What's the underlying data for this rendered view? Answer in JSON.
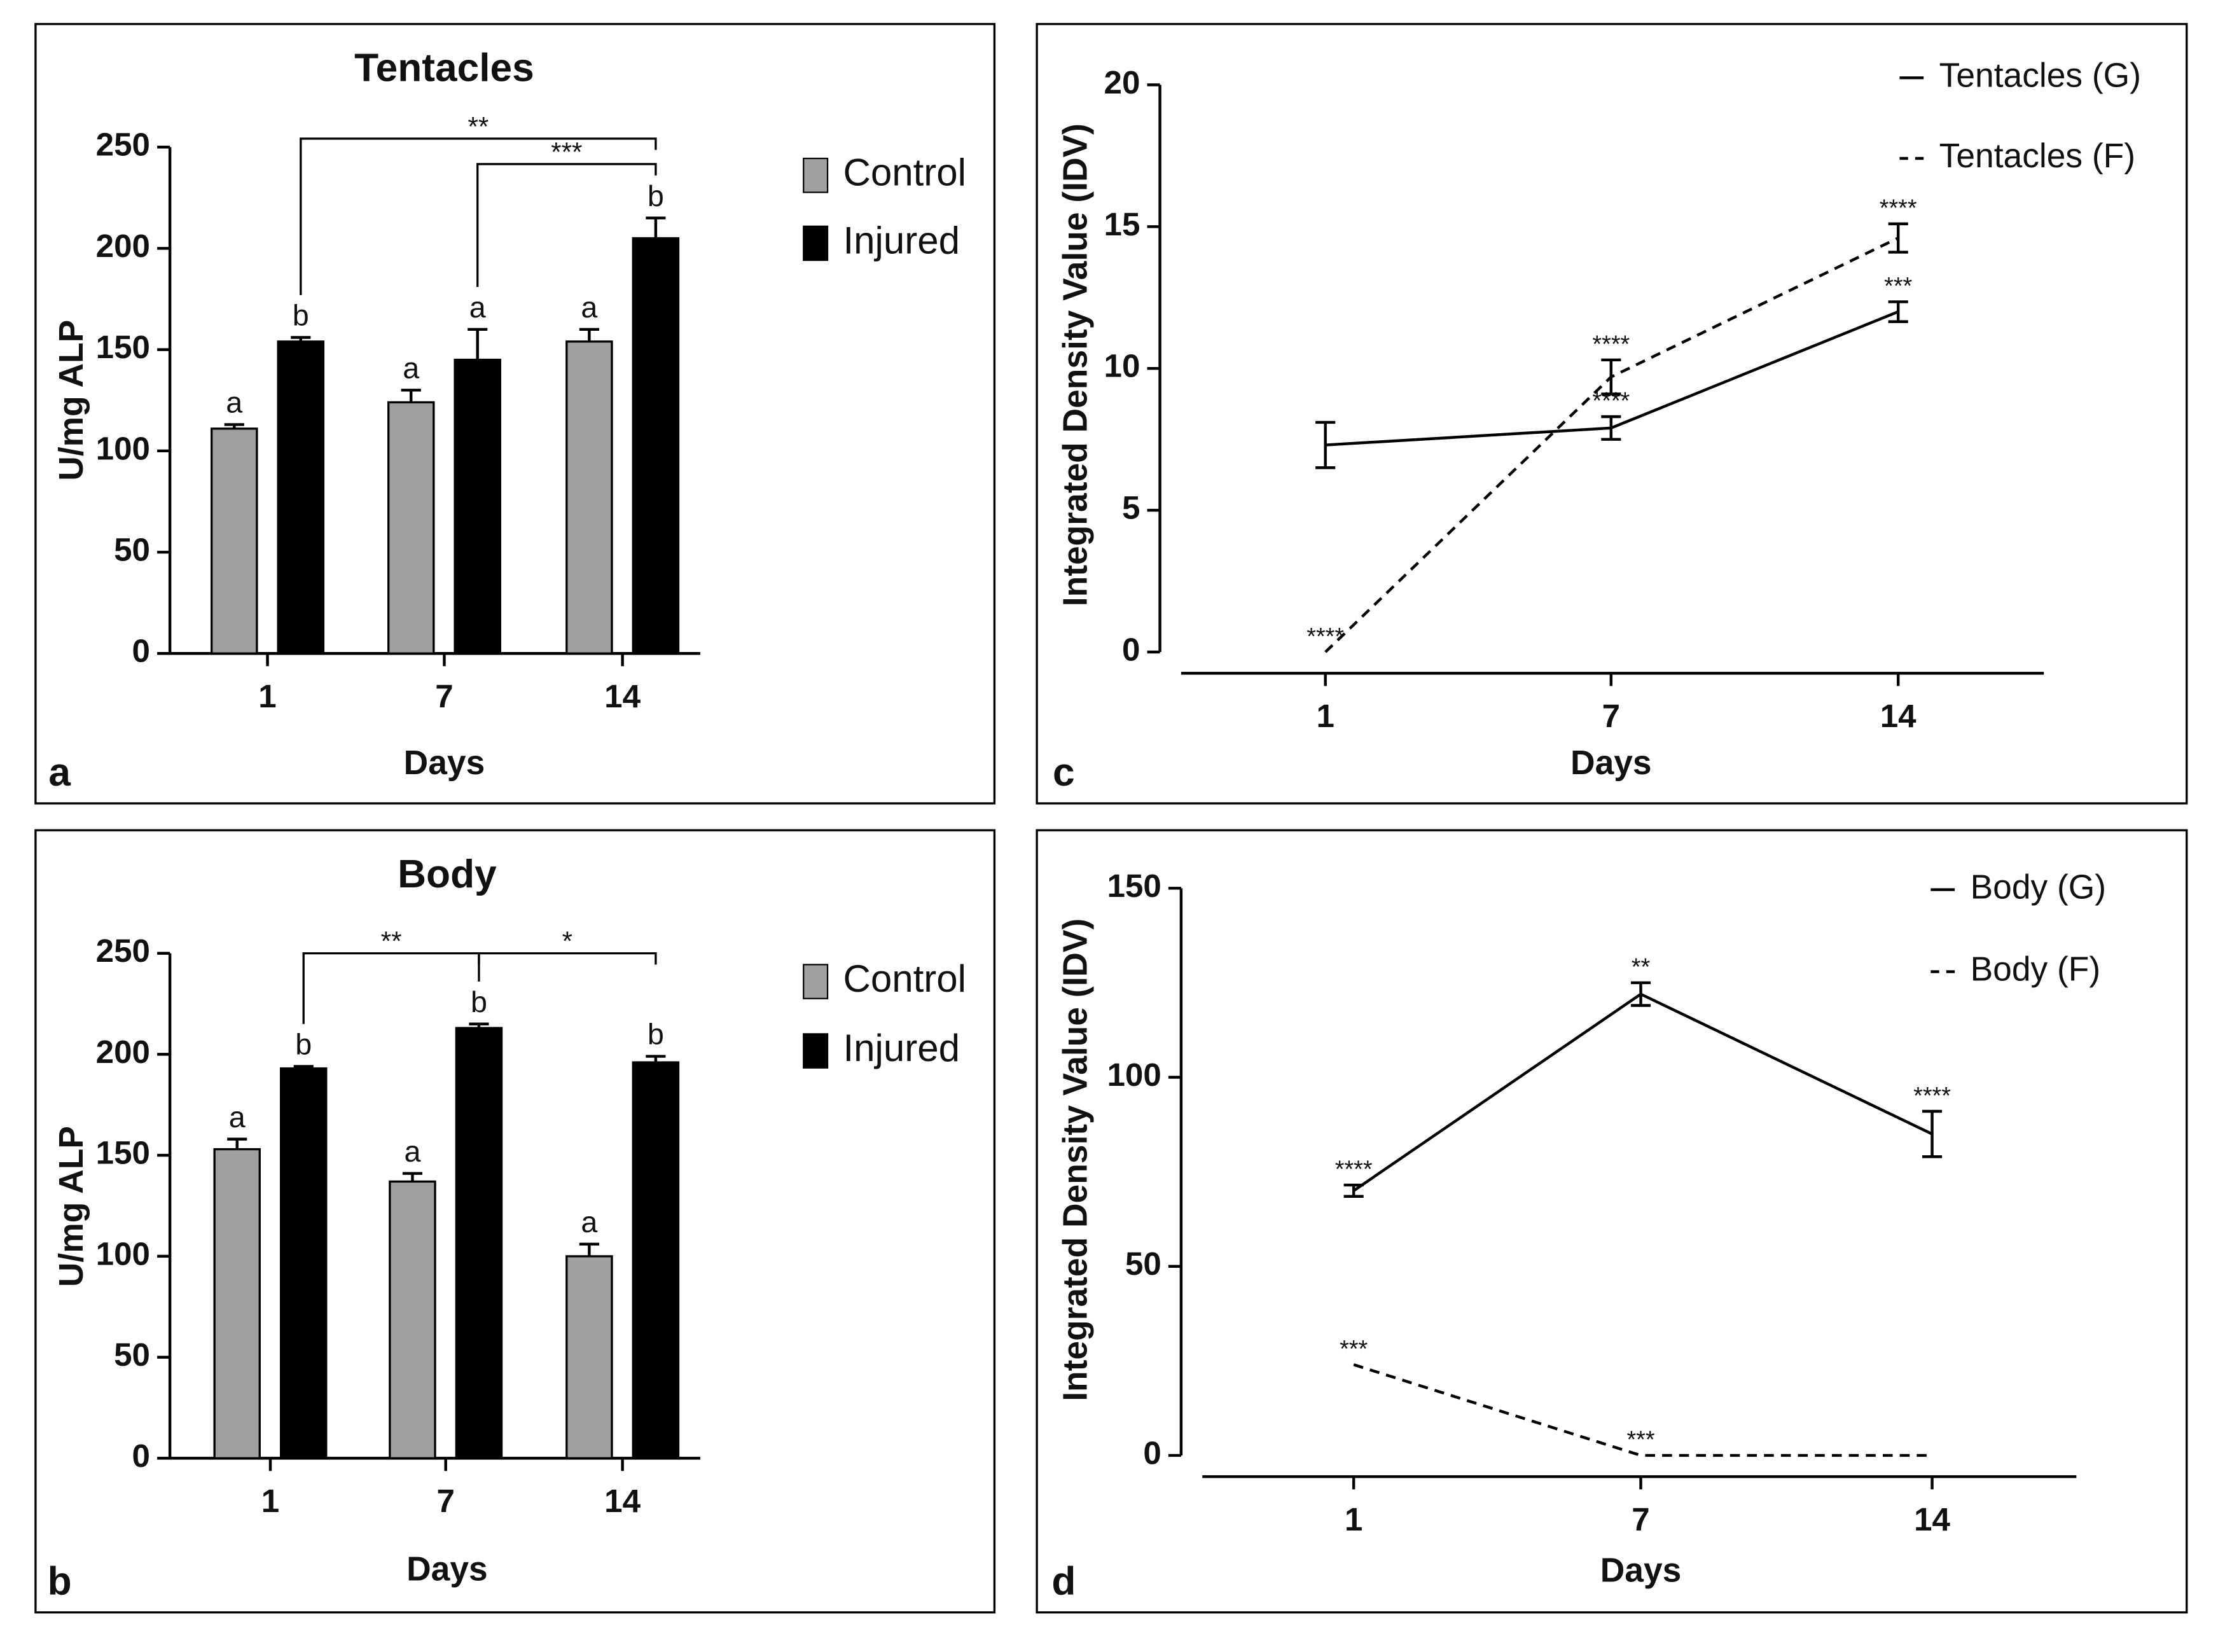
{
  "chart_data": [
    {
      "type": "bar",
      "panel": "a",
      "title": "Tentacles",
      "xlabel": "Days",
      "ylabel": "U/mg ALP",
      "categories": [
        "1",
        "7",
        "14"
      ],
      "series": [
        {
          "name": "Control",
          "color": "#a0a0a0",
          "values": [
            111,
            124,
            154
          ],
          "errors": [
            2,
            6,
            6
          ],
          "letters": [
            "a",
            "a",
            "a"
          ]
        },
        {
          "name": "Injured",
          "color": "#000000",
          "values": [
            154,
            145,
            205
          ],
          "errors": [
            2,
            15,
            10
          ],
          "letters": [
            "b",
            "a",
            "b"
          ]
        }
      ],
      "brackets": [
        {
          "label": "**",
          "from": [
            1,
            0
          ],
          "to": [
            1,
            2
          ]
        },
        {
          "label": "***",
          "from": [
            1,
            1
          ],
          "to": [
            1,
            2
          ]
        }
      ],
      "ylim": [
        0,
        250
      ],
      "yticks": [
        0,
        50,
        100,
        150,
        200,
        250
      ]
    },
    {
      "type": "bar",
      "panel": "b",
      "title": "Body",
      "xlabel": "Days",
      "ylabel": "U/mg ALP",
      "categories": [
        "1",
        "7",
        "14"
      ],
      "series": [
        {
          "name": "Control",
          "color": "#a0a0a0",
          "values": [
            153,
            137,
            100
          ],
          "errors": [
            5,
            4,
            6
          ],
          "letters": [
            "a",
            "a",
            "a"
          ]
        },
        {
          "name": "Injured",
          "color": "#000000",
          "values": [
            193,
            213,
            196
          ],
          "errors": [
            1,
            2,
            3
          ],
          "letters": [
            "b",
            "b",
            "b"
          ]
        }
      ],
      "brackets": [
        {
          "label": "**",
          "from": [
            1,
            0
          ],
          "to": [
            1,
            1
          ]
        },
        {
          "label": "*",
          "from": [
            1,
            1
          ],
          "to": [
            1,
            2
          ]
        }
      ],
      "ylim": [
        0,
        250
      ],
      "yticks": [
        0,
        50,
        100,
        150,
        200,
        250
      ]
    },
    {
      "type": "line",
      "panel": "c",
      "xlabel": "Days",
      "ylabel": "Integrated Density Value (IDV)",
      "categories": [
        "1",
        "7",
        "14"
      ],
      "series": [
        {
          "name": "Tentacles (G)",
          "color": "#000000",
          "dashed": false,
          "values": [
            7.3,
            7.9,
            12.0
          ],
          "errors": [
            0.8,
            0.4,
            0.35
          ],
          "stars": [
            null,
            "****",
            "***"
          ]
        },
        {
          "name": "Tentacles (F)",
          "color": "#000000",
          "dashed": true,
          "values": [
            0,
            9.7,
            14.6
          ],
          "errors": [
            null,
            0.6,
            0.5
          ],
          "stars": [
            "****",
            "****",
            "****"
          ]
        }
      ],
      "ylim": [
        0,
        20
      ],
      "yticks": [
        0,
        5,
        10,
        15,
        20
      ]
    },
    {
      "type": "line",
      "panel": "d",
      "xlabel": "Days",
      "ylabel": "Integrated Density Value (IDV)",
      "categories": [
        "1",
        "7",
        "14"
      ],
      "series": [
        {
          "name": "Body (G)",
          "color": "#000000",
          "dashed": false,
          "values": [
            70,
            122,
            85
          ],
          "errors": [
            1.5,
            3,
            6
          ],
          "stars": [
            "****",
            "**",
            "****"
          ]
        },
        {
          "name": "Body (F)",
          "color": "#000000",
          "dashed": true,
          "values": [
            24,
            0,
            0
          ],
          "errors": [
            null,
            null,
            null
          ],
          "stars": [
            "***",
            "***",
            null
          ]
        }
      ],
      "ylim": [
        0,
        150
      ],
      "yticks": [
        0,
        50,
        100,
        150
      ]
    }
  ]
}
